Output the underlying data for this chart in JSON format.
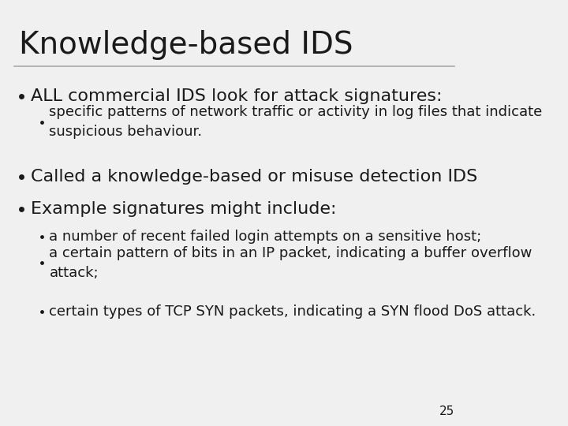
{
  "title": "Knowledge-based IDS",
  "slide_bg": "#f0f0f0",
  "text_color": "#1a1a1a",
  "title_fontsize": 28,
  "body_fontsize": 16,
  "sub_fontsize": 13,
  "page_number": "25",
  "bullet1": "ALL commercial IDS look for attack signatures:",
  "sub_bullet1": "specific patterns of network traffic or activity in log files that indicate\nsuspicious behaviour.",
  "bullet2": "Called a knowledge-based or misuse detection IDS",
  "bullet3": "Example signatures might include:",
  "sub_bullet3a": "a number of recent failed login attempts on a sensitive host;",
  "sub_bullet3b": "a certain pattern of bits in an IP packet, indicating a buffer overflow\nattack;",
  "sub_bullet3c": "certain types of TCP SYN packets, indicating a SYN flood DoS attack."
}
